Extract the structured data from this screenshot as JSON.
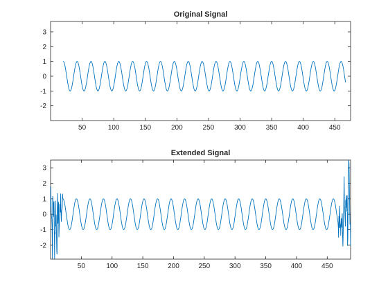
{
  "chart_data": [
    {
      "type": "line",
      "title": "Original Signal",
      "xlabel": "",
      "ylabel": "",
      "xlim": [
        0,
        475
      ],
      "ylim": [
        -3,
        3.7
      ],
      "xticks": [
        50,
        100,
        150,
        200,
        250,
        300,
        350,
        400,
        450
      ],
      "yticks": [
        -2,
        -1,
        0,
        1,
        2,
        3
      ],
      "grid": false,
      "series": [
        {
          "color": "#0072bd",
          "x_range": [
            20,
            467
          ],
          "waveform": "sine",
          "amplitude": 1,
          "period": 22,
          "phase_offset_x": 14.5
        }
      ]
    },
    {
      "type": "line",
      "title": "Extended Signal",
      "xlabel": "",
      "ylabel": "",
      "xlim": [
        0,
        488
      ],
      "ylim": [
        -2.9,
        3.5
      ],
      "xticks": [
        50,
        100,
        150,
        200,
        250,
        300,
        350,
        400,
        450
      ],
      "yticks": [
        -2,
        -1,
        0,
        1,
        2,
        3
      ],
      "grid": false,
      "series": [
        {
          "color": "#0072bd",
          "x_range": [
            0,
            488
          ],
          "waveform": "sine with noisy edges",
          "amplitude": 1,
          "period": 22,
          "phase_offset_x": 14.5,
          "clean_range": [
            20,
            467
          ],
          "edge_peak_values": [
            3.3,
            -2.4,
            1.8,
            -1.9,
            1.2,
            -2.6
          ]
        }
      ]
    }
  ]
}
